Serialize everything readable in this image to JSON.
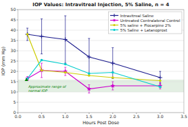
{
  "chart_data": {
    "type": "line",
    "title": "IOP Values: Intravitreal Injection, 5% Saline, n = 4",
    "x_label": "Hours Post Dose",
    "y_label": "IOP (mm Hg)",
    "xlim": [
      0,
      3.5
    ],
    "ylim": [
      0.0,
      50.0
    ],
    "xticks": [
      {
        "value": 0,
        "label": "0.0"
      },
      0.5,
      {
        "value": 1.0,
        "label": "1.0"
      },
      1.5,
      {
        "value": 2.0,
        "label": "2.0"
      },
      2.5,
      {
        "value": 3.0,
        "label": "3.0"
      },
      3.5
    ],
    "yticks": [
      0,
      5,
      10,
      15,
      20,
      25,
      30,
      35,
      40,
      45,
      50
    ],
    "grid": true,
    "legend": "upper right",
    "x": [
      0.2,
      0.5,
      1.0,
      1.5,
      2.0,
      3.0
    ],
    "series": [
      {
        "name": "Intravitreal Saline",
        "color": "#1a1a8c",
        "marker": "plus",
        "values": [
          38.0,
          37.0,
          35.5,
          27.0,
          24.0,
          17.0
        ],
        "errors": [
          3.0,
          8.5,
          11.5,
          9.0,
          7.5,
          3.0
        ]
      },
      {
        "name": "Untreated Contralateral Control",
        "color": "#cc00cc",
        "marker": "star",
        "values": [
          16.5,
          20.5,
          20.0,
          11.5,
          13.0,
          13.0
        ],
        "errors": [
          1.0,
          3.5,
          2.0,
          2.0,
          2.0,
          1.5
        ]
      },
      {
        "name": "5% saline + Piocarpine 2%",
        "color": "#cccc00",
        "marker": "circle",
        "values": [
          38.0,
          20.5,
          19.5,
          18.0,
          17.0,
          15.5
        ]
      },
      {
        "name": "5% Saline + Latanoprost",
        "color": "#00cccc",
        "marker": "circle",
        "values": [
          16.5,
          25.5,
          23.5,
          19.0,
          19.5,
          12.5
        ]
      }
    ],
    "shaded_range": [
      10.0,
      16.0
    ],
    "markers": [
      {
        "x": 0.18,
        "y": 16.0,
        "color": "green",
        "marker": "triangle"
      }
    ],
    "annotations": [
      {
        "text": "Approximate range of\nnormal IOP",
        "x": 0.22,
        "y": 11.5,
        "color": "green"
      }
    ]
  }
}
